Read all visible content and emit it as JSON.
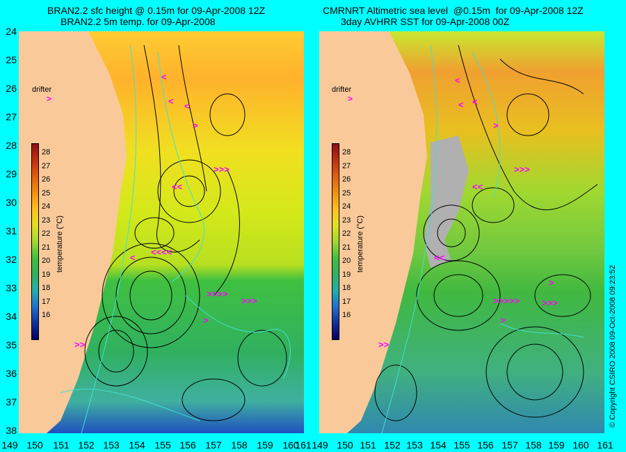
{
  "left_panel": {
    "title_line1": "BRAN2.2 sfc height @ 0.15m for 09-Apr-2008 12Z",
    "title_line2": "BRAN2.2 5m temp. for 09-Apr-2008"
  },
  "right_panel": {
    "title_line1": "CMRNRT Altimetric sea level  @0.15m  for 09-Apr-2008 12Z",
    "title_line2": "3day AVHRR SST for 09-Apr-2008 00Z"
  },
  "y_ticks": [
    "24",
    "25",
    "26",
    "27",
    "28",
    "29",
    "30",
    "31",
    "32",
    "33",
    "34",
    "35",
    "36",
    "37",
    "38"
  ],
  "x_ticks": [
    "149",
    "150",
    "151",
    "152",
    "153",
    "154",
    "155",
    "156",
    "157",
    "158",
    "159",
    "160",
    "161"
  ],
  "legend": {
    "drifter_label": "drifter",
    "drifter_symbol": ">",
    "colorbar_ticks": [
      "28",
      "27",
      "26",
      "25",
      "24",
      "23",
      "22",
      "21",
      "20",
      "19",
      "18",
      "17",
      "16"
    ],
    "colorbar_title": "temperature (°C)"
  },
  "copyright": "© Copyright CSIRO 2008   09-Oct-2008 09:23:52",
  "colors": {
    "background": "#00ffff",
    "land": "#f9c99a",
    "drifter": "#ff00ff",
    "contour": "#000000",
    "isobath": "#40e0d0"
  }
}
